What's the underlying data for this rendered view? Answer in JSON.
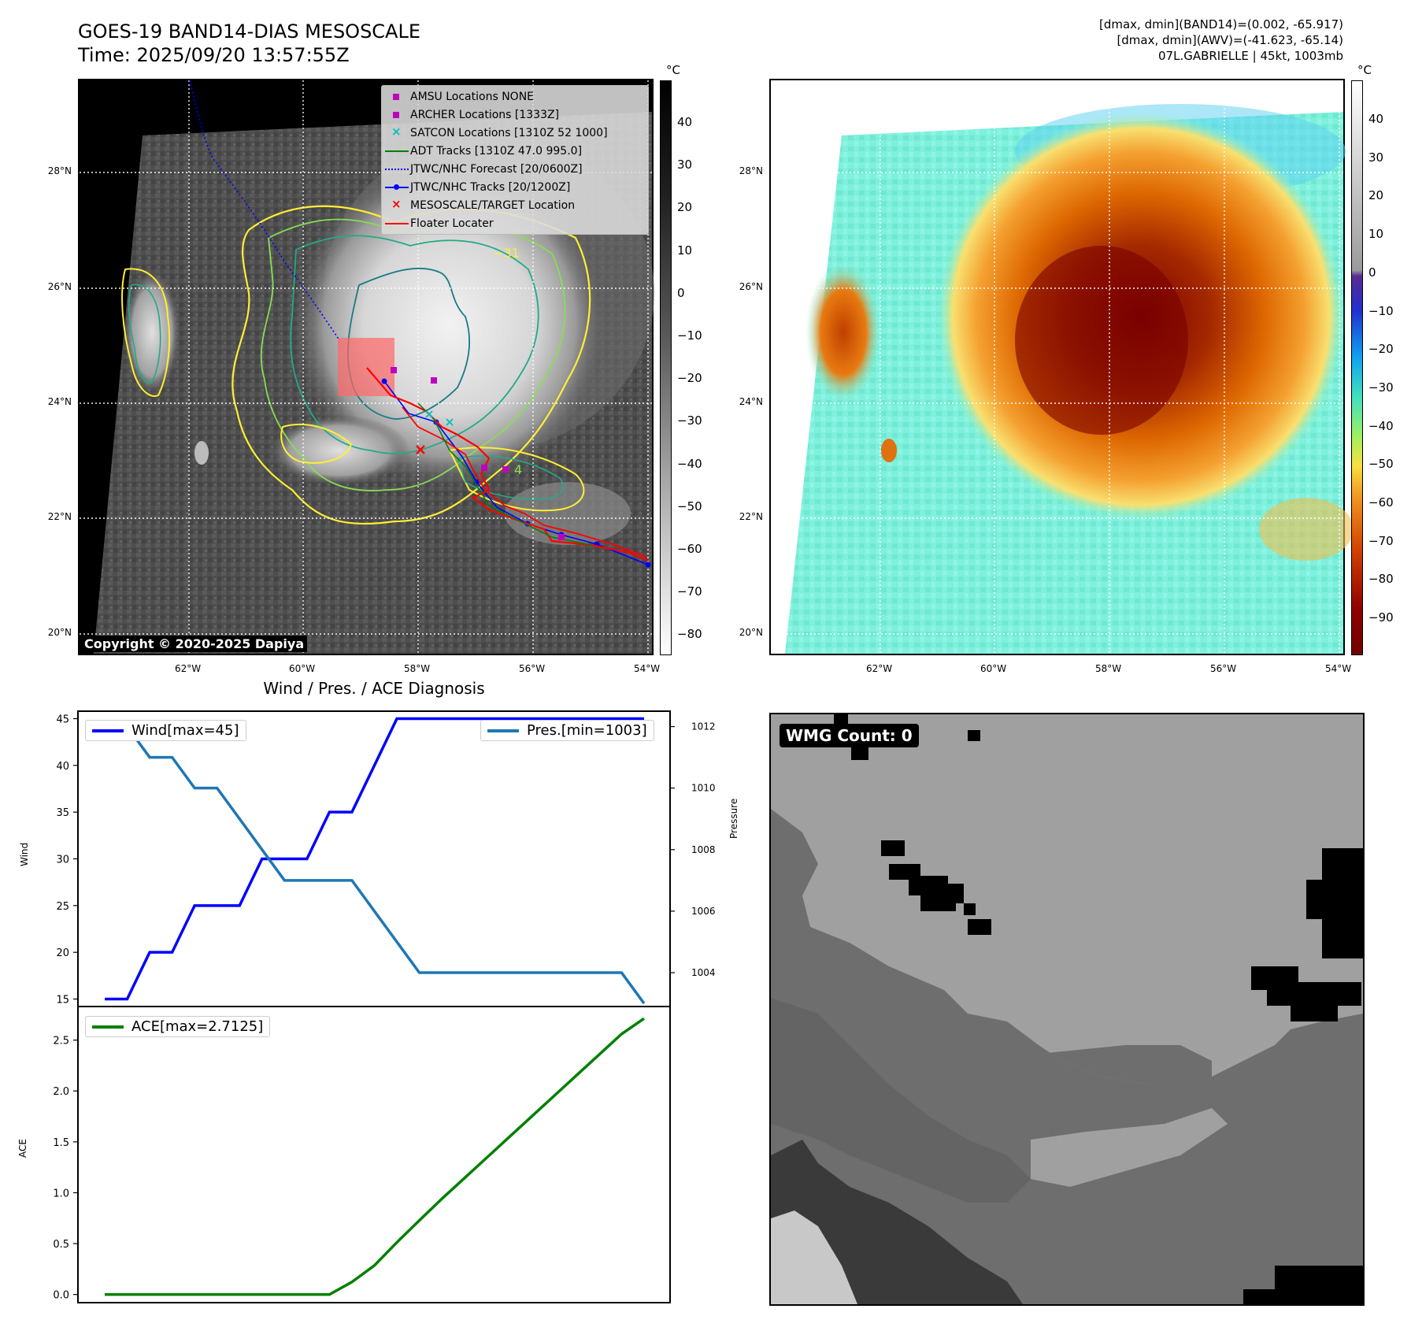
{
  "header": {
    "title": "GOES-19 BAND14-DIAS MESOSCALE",
    "time": "Time: 2025/09/20 13:57:55Z",
    "info_line1": "[dmax, dmin](BAND14)=(0.002, -65.917)",
    "info_line2": "[dmax, dmin](AWV)=(-41.623, -65.14)",
    "info_line3": "07L.GABRIELLE | 45kt, 1003mb"
  },
  "map": {
    "lat_labels": [
      "28°N",
      "26°N",
      "24°N",
      "22°N",
      "20°N"
    ],
    "lon_labels": [
      "62°W",
      "60°W",
      "58°W",
      "56°W",
      "54°W"
    ],
    "copyright": "Copyright © 2020-2025 Dapiya",
    "contour_label_1": "−31",
    "contour_label_2": "4",
    "legend": [
      {
        "label": "AMSU Locations NONE",
        "sym": "square",
        "color": "#bf00bf"
      },
      {
        "label": "ARCHER Locations [1333Z]",
        "sym": "square",
        "color": "#bf00bf"
      },
      {
        "label": "SATCON Locations [1310Z 52 1000]",
        "sym": "x",
        "color": "#00bfbf"
      },
      {
        "label": "ADT Tracks [1310Z 47.0 995.0]",
        "sym": "line",
        "color": "#008000"
      },
      {
        "label": "JTWC/NHC Forecast [20/0600Z]",
        "sym": "dotted",
        "color": "#0000ff"
      },
      {
        "label": "JTWC/NHC Tracks [20/1200Z]",
        "sym": "line-dot",
        "color": "#0000ff"
      },
      {
        "label": "MESOSCALE/TARGET Location",
        "sym": "x",
        "color": "#ff0000"
      },
      {
        "label": "Floater Locater",
        "sym": "line",
        "color": "#ff0000"
      }
    ]
  },
  "colorbar_gray": {
    "unit": "°C",
    "ticks": [
      "40",
      "30",
      "20",
      "10",
      "0",
      "−10",
      "−20",
      "−30",
      "−40",
      "−50",
      "−60",
      "−70",
      "−80"
    ]
  },
  "colorbar_color": {
    "unit": "°C",
    "ticks": [
      "40",
      "30",
      "20",
      "10",
      "0",
      "−10",
      "−20",
      "−30",
      "−40",
      "−50",
      "−60",
      "−70",
      "−80",
      "−90"
    ]
  },
  "wmg": {
    "label": "WMG Count: 0"
  },
  "chart_data": [
    {
      "type": "line",
      "title": "Wind / Pres. / ACE Diagnosis",
      "ylabel": "Wind",
      "y2label": "Pressure",
      "ylim": [
        14.2,
        45.8
      ],
      "y2lim": [
        1002.9,
        1012.5
      ],
      "yticks": [
        "45",
        "40",
        "35",
        "30",
        "25",
        "20",
        "15"
      ],
      "y2ticks": [
        "1012",
        "1010",
        "1008",
        "1006",
        "1004"
      ],
      "series": [
        {
          "name": "Wind[max=45]",
          "color": "#0000ff",
          "values": [
            15,
            15,
            20,
            20,
            25,
            25,
            25,
            30,
            30,
            30,
            35,
            35,
            40,
            45,
            45,
            45,
            45,
            45,
            45,
            45,
            45,
            45,
            45,
            45,
            45
          ]
        },
        {
          "name": "Pres.[min=1003]",
          "color": "#1f77b4",
          "values": [
            1012,
            1012,
            1011,
            1011,
            1010,
            1010,
            1009,
            1008,
            1007,
            1007,
            1007,
            1007,
            1006,
            1005,
            1004,
            1004,
            1004,
            1004,
            1004,
            1004,
            1004,
            1004,
            1004,
            1004,
            1003
          ]
        }
      ]
    },
    {
      "type": "line",
      "ylabel": "ACE",
      "ylim": [
        -0.08,
        2.83
      ],
      "yticks": [
        "2.5",
        "2.0",
        "1.5",
        "1.0",
        "0.5",
        "0.0"
      ],
      "series": [
        {
          "name": "ACE[max=2.7125]",
          "color": "#008000",
          "values": [
            0,
            0,
            0,
            0,
            0,
            0,
            0,
            0,
            0,
            0,
            0,
            0.1225,
            0.285,
            0.5125,
            0.7275,
            0.94,
            1.1425,
            1.345,
            1.5475,
            1.75,
            1.9525,
            2.155,
            2.3575,
            2.56,
            2.7125
          ]
        }
      ]
    }
  ]
}
